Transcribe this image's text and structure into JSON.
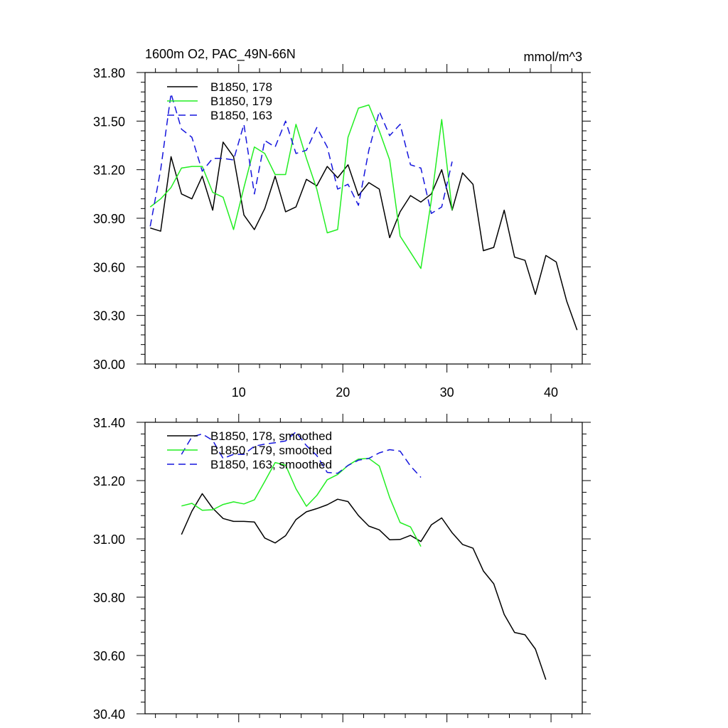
{
  "chart_data": [
    {
      "type": "line",
      "title": "1600m O2, PAC_49N-66N",
      "units": "mmol/m^3",
      "xlabel": "",
      "ylabel": "",
      "xlim": [
        1,
        43
      ],
      "ylim": [
        30.0,
        31.8
      ],
      "xticks": [
        10,
        20,
        30,
        40
      ],
      "xtick_labels": [
        "10",
        "20",
        "30",
        "40"
      ],
      "yticks": [
        30.0,
        30.3,
        30.6,
        30.9,
        31.2,
        31.5,
        31.8
      ],
      "ytick_labels": [
        "30.00",
        "30.30",
        "30.60",
        "30.90",
        "31.20",
        "31.50",
        "31.80"
      ],
      "legend_position": "top-left",
      "series": [
        {
          "name": "B1850, 178",
          "color": "#000000",
          "dash": "solid",
          "x": [
            1.5,
            2.5,
            3.5,
            4.5,
            5.5,
            6.5,
            7.5,
            8.5,
            9.5,
            10.5,
            11.5,
            12.5,
            13.5,
            14.5,
            15.5,
            16.5,
            17.5,
            18.5,
            19.5,
            20.5,
            21.5,
            22.5,
            23.5,
            24.5,
            25.5,
            26.5,
            27.5,
            28.5,
            29.5,
            30.5,
            31.5,
            32.5,
            33.5,
            34.5,
            35.5,
            36.5,
            37.5,
            38.5,
            39.5,
            40.5,
            41.5,
            42.5
          ],
          "y": [
            30.84,
            30.82,
            31.28,
            31.05,
            31.02,
            31.16,
            30.95,
            31.37,
            31.28,
            30.92,
            30.83,
            30.96,
            31.16,
            30.94,
            30.97,
            31.14,
            31.1,
            31.22,
            31.15,
            31.23,
            31.04,
            31.12,
            31.08,
            30.78,
            30.94,
            31.04,
            31.0,
            31.05,
            31.2,
            30.95,
            31.18,
            31.11,
            30.7,
            30.72,
            30.95,
            30.66,
            30.64,
            30.43,
            30.67,
            30.63,
            30.39,
            30.21
          ]
        },
        {
          "name": "B1850, 179",
          "color": "#22ee22",
          "dash": "solid",
          "x": [
            1.5,
            2.5,
            3.5,
            4.5,
            5.5,
            6.5,
            7.5,
            8.5,
            9.5,
            10.5,
            11.5,
            12.5,
            13.5,
            14.5,
            15.5,
            16.5,
            17.5,
            18.5,
            19.5,
            20.5,
            21.5,
            22.5,
            23.5,
            24.5,
            25.5,
            26.5,
            27.5,
            28.5,
            29.5,
            30.5
          ],
          "y": [
            30.97,
            31.02,
            31.09,
            31.21,
            31.22,
            31.22,
            31.06,
            31.03,
            30.83,
            31.09,
            31.34,
            31.3,
            31.17,
            31.17,
            31.48,
            31.27,
            31.08,
            30.81,
            30.83,
            31.4,
            31.58,
            31.6,
            31.44,
            31.26,
            30.79,
            30.69,
            30.59,
            31.01,
            31.51,
            30.95
          ]
        },
        {
          "name": "B1850, 163",
          "color": "#1515dd",
          "dash": "dashed",
          "x": [
            1.5,
            2.5,
            3.5,
            4.5,
            5.5,
            6.5,
            7.5,
            8.5,
            9.5,
            10.5,
            11.5,
            12.5,
            13.5,
            14.5,
            15.5,
            16.5,
            17.5,
            18.5,
            19.5,
            20.5,
            21.5,
            22.5,
            23.5,
            24.5,
            25.5,
            26.5,
            27.5,
            28.5,
            29.5,
            30.5
          ],
          "y": [
            30.85,
            31.2,
            31.67,
            31.45,
            31.4,
            31.19,
            31.27,
            31.27,
            31.26,
            31.48,
            31.05,
            31.38,
            31.34,
            31.5,
            31.3,
            31.32,
            31.46,
            31.34,
            31.08,
            31.11,
            30.98,
            31.32,
            31.56,
            31.41,
            31.48,
            31.23,
            31.21,
            30.93,
            30.97,
            31.25
          ]
        }
      ]
    },
    {
      "type": "line",
      "title": "",
      "xlabel": "",
      "ylabel": "",
      "xlim": [
        1,
        43
      ],
      "ylim": [
        30.4,
        31.4
      ],
      "xticks": [
        10,
        20,
        30,
        40
      ],
      "xtick_labels": [],
      "yticks": [
        30.4,
        30.6,
        30.8,
        31.0,
        31.2,
        31.4
      ],
      "ytick_labels": [
        "30.40",
        "30.60",
        "30.80",
        "31.00",
        "31.20",
        "31.40"
      ],
      "legend_position": "top-left",
      "series": [
        {
          "name": "B1850, 178, smoothed",
          "color": "#000000",
          "dash": "solid",
          "x": [
            4.5,
            5.5,
            6.5,
            7.5,
            8.5,
            9.5,
            10.5,
            11.5,
            12.5,
            13.5,
            14.5,
            15.5,
            16.5,
            17.5,
            18.5,
            19.5,
            20.5,
            21.5,
            22.5,
            23.5,
            24.5,
            25.5,
            26.5,
            27.5,
            28.5,
            29.5,
            30.5,
            31.5,
            32.5,
            33.5,
            34.5,
            35.5,
            36.5,
            37.5,
            38.5,
            39.5
          ],
          "y": [
            31.015,
            31.095,
            31.155,
            31.105,
            31.07,
            31.06,
            31.06,
            31.058,
            31.003,
            30.986,
            31.011,
            31.066,
            31.093,
            31.104,
            31.117,
            31.136,
            31.128,
            31.08,
            31.044,
            31.031,
            30.997,
            30.998,
            31.012,
            30.991,
            31.048,
            31.072,
            31.021,
            30.981,
            30.968,
            30.89,
            30.846,
            30.741,
            30.679,
            30.671,
            30.622,
            30.517
          ]
        },
        {
          "name": "B1850, 179, smoothed",
          "color": "#22ee22",
          "dash": "solid",
          "x": [
            4.5,
            5.5,
            6.5,
            7.5,
            8.5,
            9.5,
            10.5,
            11.5,
            12.5,
            13.5,
            14.5,
            15.5,
            16.5,
            17.5,
            18.5,
            19.5,
            20.5,
            21.5,
            22.5,
            23.5,
            24.5,
            25.5,
            26.5,
            27.5
          ],
          "y": [
            31.113,
            31.122,
            31.098,
            31.1,
            31.118,
            31.127,
            31.12,
            31.134,
            31.197,
            31.262,
            31.253,
            31.172,
            31.112,
            31.149,
            31.203,
            31.221,
            31.252,
            31.274,
            31.276,
            31.25,
            31.142,
            31.056,
            31.041,
            30.974
          ]
        },
        {
          "name": "B1850, 163, smoothed",
          "color": "#1515dd",
          "dash": "dashed",
          "x": [
            4.5,
            5.5,
            6.5,
            7.5,
            8.5,
            9.5,
            10.5,
            11.5,
            12.5,
            13.5,
            14.5,
            15.5,
            16.5,
            17.5,
            18.5,
            19.5,
            20.5,
            21.5,
            22.5,
            23.5,
            24.5,
            25.5,
            26.5,
            27.5
          ],
          "y": [
            31.29,
            31.35,
            31.36,
            31.338,
            31.276,
            31.29,
            31.29,
            31.318,
            31.325,
            31.33,
            31.336,
            31.367,
            31.32,
            31.286,
            31.228,
            31.225,
            31.252,
            31.27,
            31.276,
            31.295,
            31.306,
            31.301,
            31.25,
            31.211
          ]
        }
      ]
    }
  ]
}
